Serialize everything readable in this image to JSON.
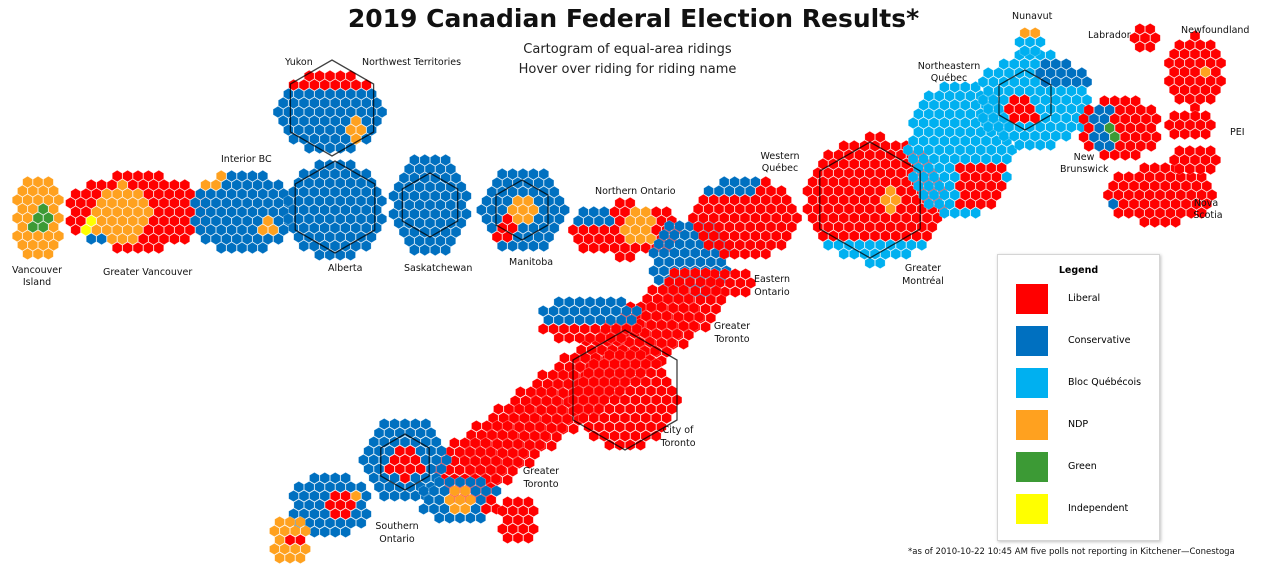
{
  "title": "2019 Canadian Federal Election Results*",
  "subtitle_line1": "Cartogram of equal-area ridings",
  "subtitle_line2": "Hover over riding for riding name",
  "footnote": "*as of 2010-10-22 10:45 AM five polls not reporting in Kitchener—Conestoga",
  "colors": {
    "Liberal": "#ff0000",
    "Conservative": "#0070c0",
    "Bloc Québécois": "#00b0f0",
    "NDP": "#ffa11f",
    "Green": "#3c9a35",
    "Independent": "#ffff00"
  },
  "legend": {
    "title": "Legend",
    "items": [
      {
        "label": "Liberal",
        "color": "#ff0000"
      },
      {
        "label": "Conservative",
        "color": "#0070c0"
      },
      {
        "label": "Bloc Québécois",
        "color": "#00b0f0"
      },
      {
        "label": "NDP",
        "color": "#ffa11f"
      },
      {
        "label": "Green",
        "color": "#3c9a35"
      },
      {
        "label": "Independent",
        "color": "#ffff00"
      }
    ]
  },
  "labels": {
    "yukon": "Yukon",
    "nwt": "Northwest Territories",
    "nunavut": "Nunavut",
    "labrador": "Labrador",
    "newfoundland": "Newfoundland",
    "pei": "PEI",
    "new_brunswick_1": "New",
    "new_brunswick_2": "Brunswick",
    "nova_scotia_1": "Nova",
    "nova_scotia_2": "Scotia",
    "ne_quebec_1": "Northeastern",
    "ne_quebec_2": "Québec",
    "w_quebec_1": "Western",
    "w_quebec_2": "Québec",
    "gmontreal_1": "Greater",
    "gmontreal_2": "Montréal",
    "interior_bc": "Interior BC",
    "van_island_1": "Vancouver",
    "van_island_2": "Island",
    "greater_vancouver": "Greater Vancouver",
    "alberta": "Alberta",
    "saskatchewan": "Saskatchewan",
    "manitoba": "Manitoba",
    "northern_ontario": "Northern Ontario",
    "eastern_ontario_1": "Eastern",
    "eastern_ontario_2": "Ontario",
    "gtoronto_a_1": "Greater",
    "gtoronto_a_2": "Toronto",
    "city_toronto_1": "City of",
    "city_toronto_2": "Toronto",
    "gtoronto_b_1": "Greater",
    "gtoronto_b_2": "Toronto",
    "southern_ontario_1": "Southern",
    "southern_ontario_2": "Ontario"
  }
}
